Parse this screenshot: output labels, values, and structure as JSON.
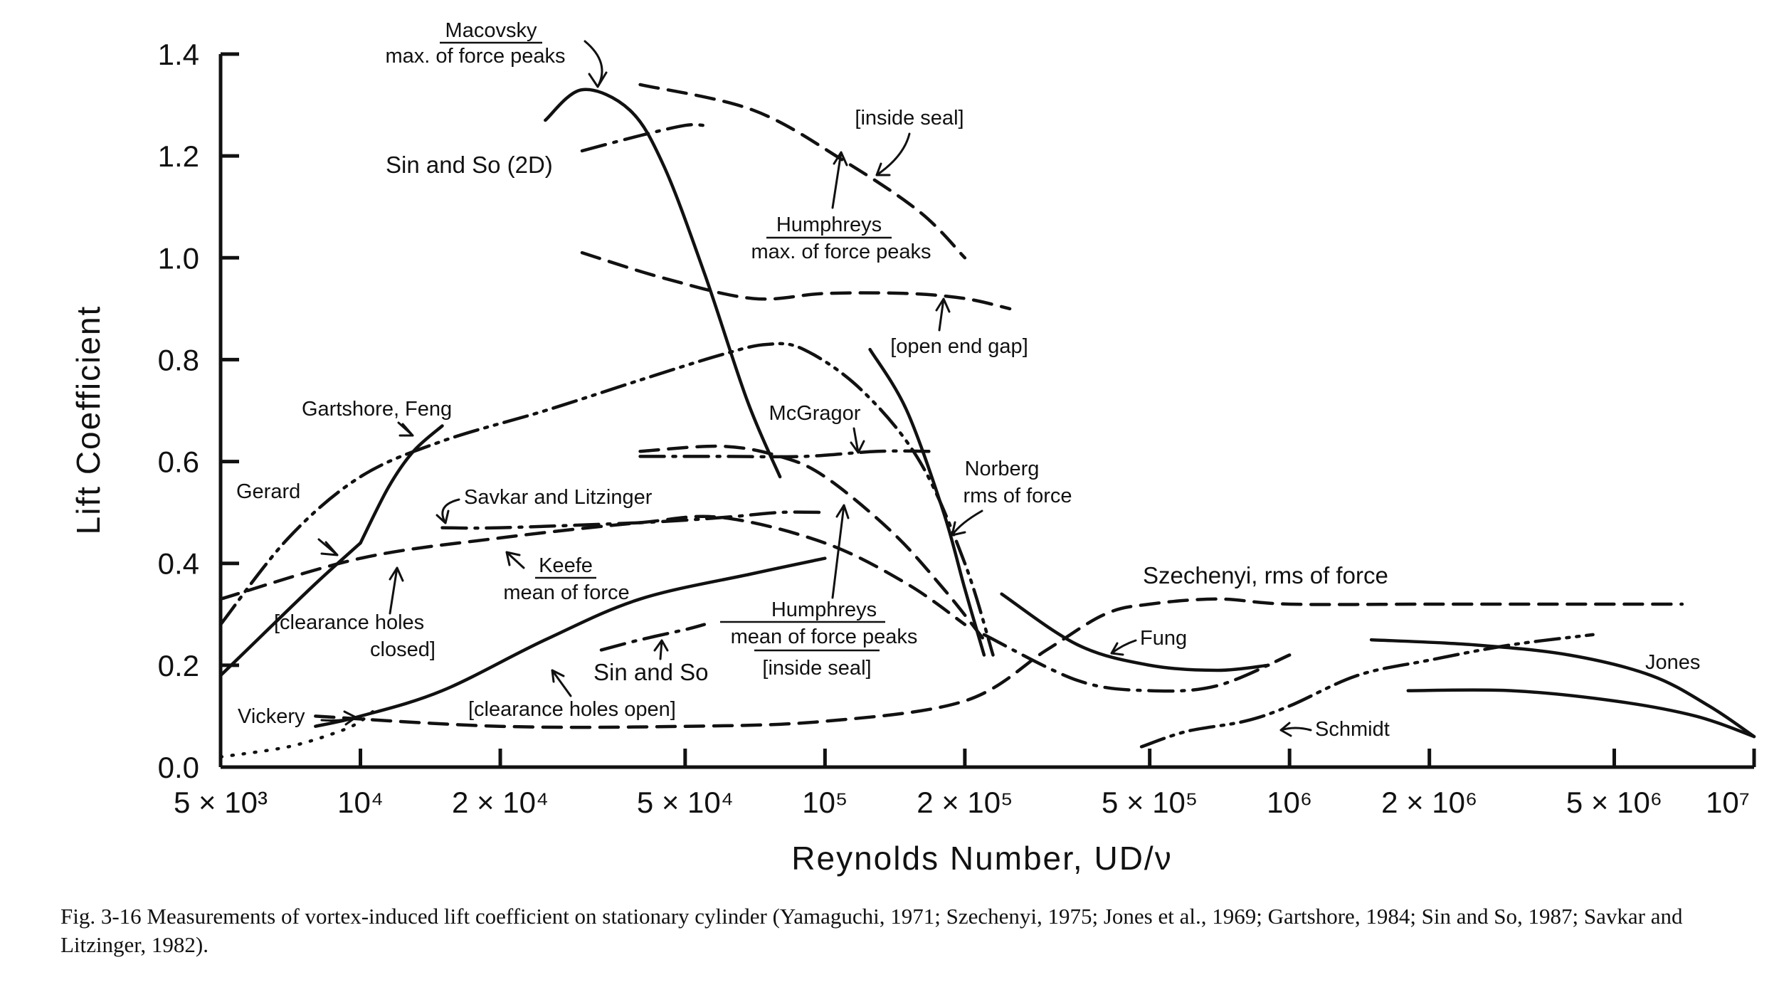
{
  "chart_data": {
    "type": "line",
    "xlabel": "Reynolds Number, UD/ν",
    "ylabel": "Lift Coefficient",
    "xscale": "log",
    "xlim": [
      5000,
      10000000
    ],
    "ylim": [
      0.0,
      1.4
    ],
    "y_ticks": [
      0.0,
      0.2,
      0.4,
      0.6,
      0.8,
      1.0,
      1.2,
      1.4
    ],
    "y_tick_labels": [
      "0.0",
      "0.2",
      "0.4",
      "0.6",
      "0.8",
      "1.0",
      "1.2",
      "1.4"
    ],
    "x_ticks": [
      5000,
      10000,
      20000,
      50000,
      100000,
      200000,
      500000,
      1000000,
      2000000,
      5000000,
      10000000
    ],
    "x_tick_labels": [
      "5 × 10³",
      "10⁴",
      "2 × 10⁴",
      "5 × 10⁴",
      "10⁵",
      "2 × 10⁵",
      "5 × 10⁵",
      "10⁶",
      "2 × 10⁶",
      "5 × 10⁶",
      "10⁷"
    ],
    "grid": false,
    "series": [
      {
        "name": "Macovsky max. of force peaks",
        "style": "solid",
        "x": [
          25000,
          30000,
          38000,
          45000,
          55000,
          68000,
          80000
        ],
        "y": [
          1.27,
          1.33,
          1.29,
          1.18,
          0.97,
          0.72,
          0.57
        ]
      },
      {
        "name": "Humphreys max. of force peaks [inside seal]",
        "style": "dashed",
        "x": [
          40000,
          70000,
          110000,
          160000,
          200000
        ],
        "y": [
          1.34,
          1.29,
          1.19,
          1.09,
          1.0
        ]
      },
      {
        "name": "Sin and So (2D)",
        "style": "dash-dot",
        "x": [
          30000,
          40000,
          50000,
          55000
        ],
        "y": [
          1.21,
          1.24,
          1.26,
          1.26
        ]
      },
      {
        "name": "Humphreys max. of force peaks [open end gap]",
        "style": "dashed",
        "x": [
          30000,
          45000,
          70000,
          100000,
          150000,
          200000,
          250000
        ],
        "y": [
          1.01,
          0.96,
          0.92,
          0.93,
          0.93,
          0.92,
          0.9
        ]
      },
      {
        "name": "Gartshore, Feng",
        "style": "dash-dot-dot",
        "x": [
          5000,
          7000,
          10000,
          15000,
          25000,
          40000,
          60000,
          75000,
          90000,
          120000,
          160000,
          200000,
          230000
        ],
        "y": [
          0.28,
          0.45,
          0.57,
          0.64,
          0.7,
          0.76,
          0.81,
          0.83,
          0.82,
          0.74,
          0.6,
          0.4,
          0.22
        ]
      },
      {
        "name": "Gerard",
        "style": "solid",
        "x": [
          5000,
          6000,
          8000,
          10000
        ],
        "y": [
          0.18,
          0.25,
          0.36,
          0.44
        ]
      },
      {
        "name": "Gartshore, Feng (steep)",
        "style": "solid",
        "x": [
          10000,
          11500,
          13000,
          15000
        ],
        "y": [
          0.44,
          0.55,
          0.62,
          0.67
        ]
      },
      {
        "name": "Savkar and Litzinger",
        "style": "dash-dot",
        "x": [
          15000,
          20000,
          40000,
          60000,
          80000,
          100000
        ],
        "y": [
          0.47,
          0.47,
          0.48,
          0.49,
          0.5,
          0.5
        ]
      },
      {
        "name": "McGragor",
        "style": "dash-dot",
        "x": [
          40000,
          60000,
          90000,
          130000,
          170000
        ],
        "y": [
          0.61,
          0.61,
          0.61,
          0.62,
          0.62
        ]
      },
      {
        "name": "Humphreys mean of force peaks [inside seal]",
        "style": "dashed",
        "x": [
          40000,
          60000,
          80000,
          100000,
          140000,
          180000,
          220000
        ],
        "y": [
          0.62,
          0.63,
          0.61,
          0.57,
          0.46,
          0.35,
          0.25
        ]
      },
      {
        "name": "Keefe mean of force",
        "style": "dashed",
        "x": [
          5000,
          10000,
          20000,
          40000,
          60000,
          100000,
          150000,
          200000
        ],
        "y": [
          0.33,
          0.41,
          0.45,
          0.48,
          0.49,
          0.44,
          0.36,
          0.28
        ]
      },
      {
        "name": "Norberg rms of force",
        "style": "solid",
        "x": [
          125000,
          150000,
          180000,
          200000,
          220000
        ],
        "y": [
          0.82,
          0.7,
          0.5,
          0.35,
          0.22
        ]
      },
      {
        "name": "Keefe [clearance holes open]",
        "style": "solid",
        "x": [
          8000,
          10000,
          15000,
          25000,
          40000,
          70000,
          100000
        ],
        "y": [
          0.08,
          0.1,
          0.15,
          0.25,
          0.33,
          0.38,
          0.41
        ]
      },
      {
        "name": "Vickery",
        "style": "dotted",
        "x": [
          5000,
          7000,
          9000,
          10000,
          11000
        ],
        "y": [
          0.02,
          0.04,
          0.07,
          0.09,
          0.12
        ]
      },
      {
        "name": "Sin and So",
        "style": "dash-dot",
        "x": [
          33000,
          40000,
          50000,
          55000
        ],
        "y": [
          0.23,
          0.25,
          0.27,
          0.28
        ]
      },
      {
        "name": "Keefe [clearance holes closed]",
        "style": "dashed",
        "x": [
          8000,
          20000,
          50000,
          100000,
          200000,
          300000,
          400000,
          500000,
          700000,
          1000000,
          2000000,
          4000000,
          7000000
        ],
        "y": [
          0.1,
          0.08,
          0.08,
          0.09,
          0.13,
          0.23,
          0.3,
          0.32,
          0.33,
          0.32,
          0.32,
          0.32,
          0.32
        ]
      },
      {
        "name": "Fung",
        "style": "solid",
        "x": [
          240000,
          350000,
          500000,
          700000,
          900000
        ],
        "y": [
          0.34,
          0.24,
          0.2,
          0.19,
          0.2
        ]
      },
      {
        "name": "Fung (dash-dot)",
        "style": "dash-dot",
        "x": [
          220000,
          350000,
          500000,
          700000,
          1000000
        ],
        "y": [
          0.26,
          0.17,
          0.15,
          0.16,
          0.22
        ]
      },
      {
        "name": "Szechenyi, rms of force",
        "style": "solid",
        "x": [
          1500000,
          2500000,
          4000000,
          6000000,
          8000000,
          10000000
        ],
        "y": [
          0.25,
          0.24,
          0.22,
          0.18,
          0.12,
          0.06
        ]
      },
      {
        "name": "Schmidt",
        "style": "dash-dot-dot",
        "x": [
          480000,
          600000,
          800000,
          1000000,
          1400000,
          2000000,
          3000000,
          4500000
        ],
        "y": [
          0.04,
          0.07,
          0.09,
          0.12,
          0.18,
          0.21,
          0.24,
          0.26
        ]
      },
      {
        "name": "Jones",
        "style": "solid",
        "x": [
          1800000,
          3000000,
          5000000,
          7500000,
          10000000
        ],
        "y": [
          0.15,
          0.15,
          0.13,
          0.1,
          0.06
        ]
      }
    ],
    "annotations": {
      "macovsky_title": "Macovsky",
      "macovsky_sub": "max. of force peaks",
      "inside_seal_top": "[inside seal]",
      "sin_so_2d": "Sin and So (2D)",
      "humphreys_max_title": "Humphreys",
      "humphreys_max_sub": "max. of force peaks",
      "open_end_gap": "[open end gap]",
      "gartshore_feng": "Gartshore, Feng",
      "mcgragor": "McGragor",
      "norberg_1": "Norberg",
      "norberg_2": "rms of force",
      "gerard": "Gerard",
      "savkar": "Savkar and Litzinger",
      "keefe_title": "Keefe",
      "keefe_sub": "mean of force",
      "humphreys_mean_title": "Humphreys",
      "humphreys_mean_sub": "mean of force peaks",
      "inside_seal_bottom": "[inside seal]",
      "szechenyi": "Szechenyi, rms of force",
      "clearance_closed_1": "[clearance holes",
      "clearance_closed_2": "closed]",
      "sin_so": "Sin and So",
      "fung": "Fung",
      "jones": "Jones",
      "vickery": "Vickery",
      "clearance_open": "[clearance holes open]",
      "schmidt": "Schmidt"
    }
  },
  "caption": "Fig. 3-16 Measurements of vortex-induced lift coefficient on stationary cylinder (Yamaguchi, 1971; Szechenyi, 1975; Jones et al., 1969; Gartshore, 1984; Sin and So, 1987; Savkar and Litzinger, 1982)."
}
